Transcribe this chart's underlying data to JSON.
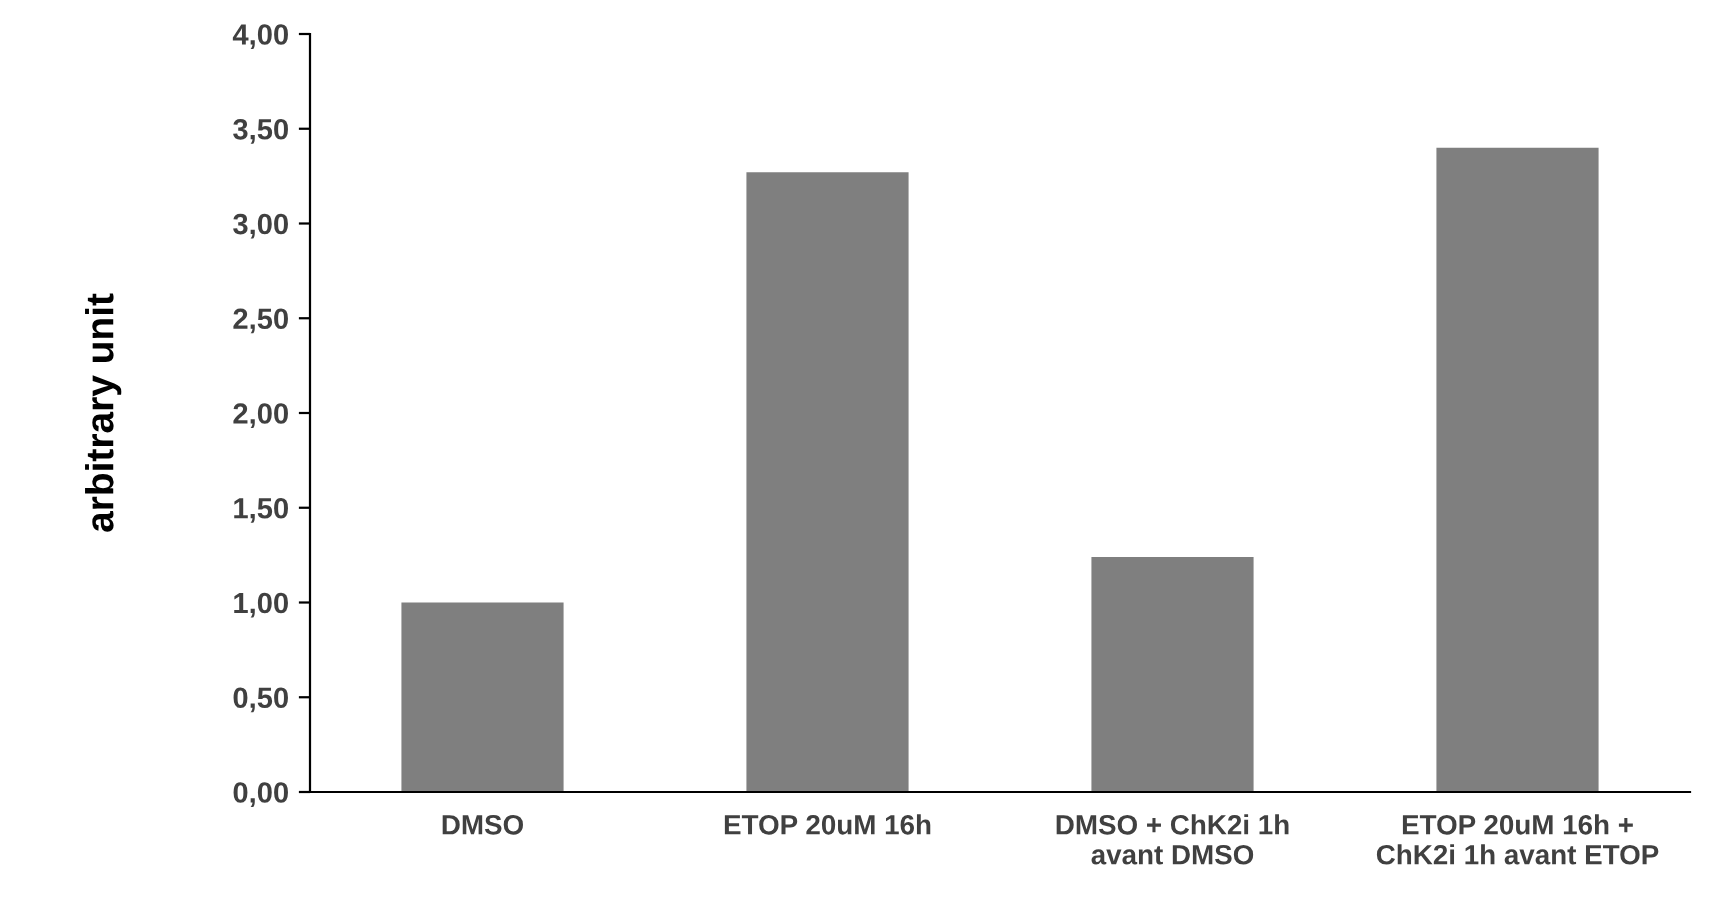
{
  "chart_data": {
    "type": "bar",
    "ylabel": "arbitrary unit",
    "categories": [
      "DMSO",
      "ETOP 20uM 16h",
      "DMSO + ChK2i 1h\navant DMSO",
      "ETOP 20uM 16h +\nChK2i 1h avant ETOP"
    ],
    "values": [
      1.0,
      3.27,
      1.24,
      3.4
    ],
    "color": "#7f7f7f",
    "ylim": [
      0,
      4
    ],
    "yticks": [
      {
        "value": 0,
        "label": "0,00"
      },
      {
        "value": 0.5,
        "label": "0,50"
      },
      {
        "value": 1,
        "label": "1,00"
      },
      {
        "value": 1.5,
        "label": "1,50"
      },
      {
        "value": 2,
        "label": "2,00"
      },
      {
        "value": 2.5,
        "label": "2,50"
      },
      {
        "value": 3,
        "label": "3,00"
      },
      {
        "value": 3.5,
        "label": "3,50"
      },
      {
        "value": 4,
        "label": "4,00"
      }
    ],
    "grid": false,
    "legend": false
  }
}
